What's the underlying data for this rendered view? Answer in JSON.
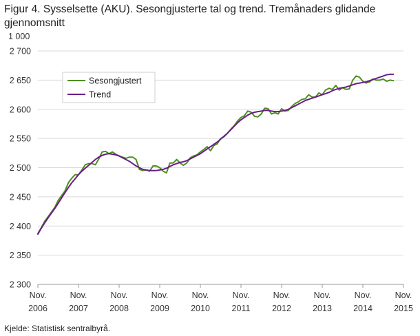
{
  "title": "Figur 4. Sysselsette (AKU).  Sesongjusterte tal og trend. Tremånaders glidande gjennomsnitt",
  "source": "Kjelde: Statistisk sentralbyrå.",
  "colors": {
    "sesong": "#4d8f1e",
    "trend": "#6a1b8a",
    "grid": "#d9d9d9"
  },
  "chart_data": {
    "type": "line",
    "title": "Figur 4. Sysselsette (AKU).  Sesongjusterte tal og trend. Tremånaders glidande gjennomsnitt",
    "y_unit": "1 000",
    "ylim": [
      2300,
      2700
    ],
    "y_ticks": [
      2300,
      2350,
      2400,
      2450,
      2500,
      2550,
      2600,
      2650,
      2700
    ],
    "y_tick_labels": [
      "2 300",
      "2 350",
      "2 400",
      "2 450",
      "2 500",
      "2 550",
      "2 600",
      "2 650",
      "2 700"
    ],
    "x_ticks": [
      {
        "month": "Nov.",
        "year": "2006"
      },
      {
        "month": "Nov.",
        "year": "2007"
      },
      {
        "month": "Nov.",
        "year": "2008"
      },
      {
        "month": "Nov.",
        "year": "2009"
      },
      {
        "month": "Nov.",
        "year": "2010"
      },
      {
        "month": "Nov.",
        "year": "2011"
      },
      {
        "month": "Nov.",
        "year": "2012"
      },
      {
        "month": "Nov.",
        "year": "2013"
      },
      {
        "month": "Nov.",
        "year": "2014"
      },
      {
        "month": "Nov.",
        "year": "2015"
      }
    ],
    "grid": "horizontal",
    "legend_position": "top-left",
    "series": [
      {
        "name": "Sesongjustert",
        "color": "#4d8f1e",
        "values": [
          2387,
          2397,
          2408,
          2416,
          2424,
          2432,
          2444,
          2452,
          2460,
          2474,
          2482,
          2488,
          2488,
          2496,
          2505,
          2507,
          2507,
          2505,
          2515,
          2527,
          2528,
          2524,
          2527,
          2523,
          2520,
          2518,
          2516,
          2518,
          2518,
          2514,
          2497,
          2495,
          2496,
          2494,
          2503,
          2503,
          2500,
          2494,
          2491,
          2508,
          2508,
          2514,
          2508,
          2504,
          2508,
          2517,
          2520,
          2522,
          2527,
          2531,
          2536,
          2529,
          2538,
          2541,
          2550,
          2553,
          2559,
          2566,
          2572,
          2580,
          2586,
          2589,
          2597,
          2595,
          2588,
          2587,
          2592,
          2602,
          2601,
          2592,
          2594,
          2592,
          2601,
          2597,
          2598,
          2605,
          2610,
          2613,
          2617,
          2618,
          2625,
          2621,
          2621,
          2628,
          2625,
          2633,
          2636,
          2634,
          2641,
          2633,
          2637,
          2634,
          2635,
          2650,
          2657,
          2655,
          2648,
          2645,
          2647,
          2652,
          2650,
          2650,
          2652,
          2648,
          2650,
          2649
        ]
      },
      {
        "name": "Trend",
        "color": "#6a1b8a",
        "values": [
          2386,
          2396,
          2405,
          2414,
          2422,
          2430,
          2439,
          2448,
          2457,
          2466,
          2474,
          2481,
          2488,
          2494,
          2499,
          2504,
          2509,
          2514,
          2518,
          2521,
          2523,
          2524,
          2523,
          2522,
          2520,
          2517,
          2514,
          2511,
          2507,
          2503,
          2500,
          2497,
          2496,
          2495,
          2495,
          2495,
          2496,
          2497,
          2499,
          2502,
          2505,
          2507,
          2509,
          2510,
          2512,
          2515,
          2518,
          2521,
          2524,
          2528,
          2532,
          2536,
          2540,
          2544,
          2549,
          2554,
          2559,
          2565,
          2571,
          2577,
          2582,
          2586,
          2590,
          2593,
          2595,
          2596,
          2597,
          2598,
          2598,
          2597,
          2596,
          2596,
          2597,
          2598,
          2600,
          2603,
          2606,
          2609,
          2612,
          2615,
          2617,
          2619,
          2621,
          2623,
          2625,
          2627,
          2629,
          2632,
          2634,
          2636,
          2637,
          2638,
          2640,
          2642,
          2644,
          2645,
          2646,
          2647,
          2649,
          2651,
          2653,
          2655,
          2657,
          2659,
          2660,
          2660
        ]
      }
    ]
  }
}
